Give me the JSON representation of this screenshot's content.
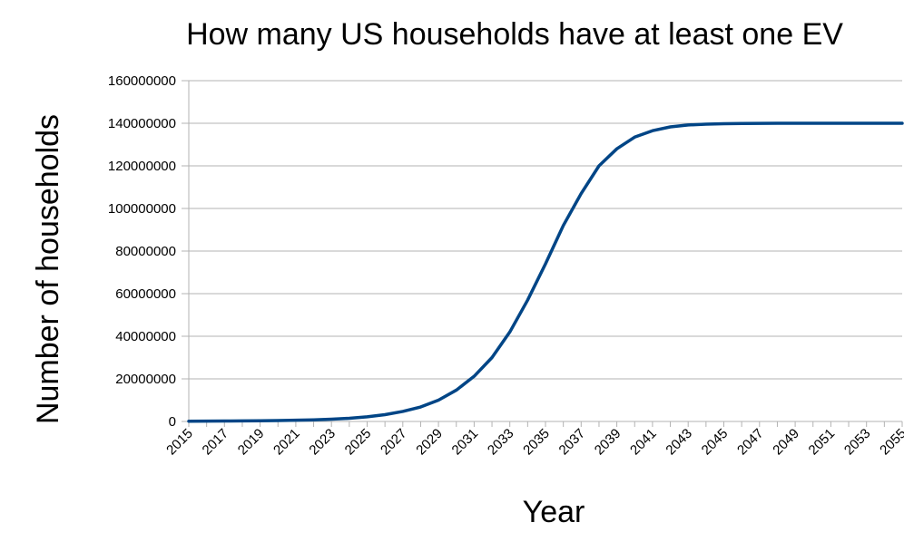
{
  "chart_data": {
    "type": "line",
    "title": "How many US households have at least one EV",
    "xlabel": "Year",
    "ylabel": "Number of households",
    "ylim": [
      0,
      160000000
    ],
    "y_ticks": [
      "0",
      "20000000",
      "40000000",
      "60000000",
      "80000000",
      "100000000",
      "120000000",
      "140000000",
      "160000000"
    ],
    "x": [
      "2015",
      "2016",
      "2017",
      "2018",
      "2019",
      "2020",
      "2021",
      "2022",
      "2023",
      "2024",
      "2025",
      "2026",
      "2027",
      "2028",
      "2029",
      "2030",
      "2031",
      "2032",
      "2033",
      "2034",
      "2035",
      "2036",
      "2037",
      "2038",
      "2039",
      "2040",
      "2041",
      "2042",
      "2043",
      "2044",
      "2045",
      "2046",
      "2047",
      "2048",
      "2049",
      "2050",
      "2051",
      "2052",
      "2053",
      "2054",
      "2055"
    ],
    "x_tick_labels": [
      "2015",
      "2017",
      "2019",
      "2021",
      "2023",
      "2025",
      "2027",
      "2029",
      "2031",
      "2033",
      "2035",
      "2037",
      "2039",
      "2041",
      "2043",
      "2045",
      "2047",
      "2049",
      "2051",
      "2053",
      "2055"
    ],
    "series": [
      {
        "color": "#004586",
        "values": [
          100000,
          150000,
          200000,
          250000,
          320000,
          420000,
          560000,
          750000,
          1050000,
          1500000,
          2200000,
          3200000,
          4700000,
          6800000,
          10000000,
          14700000,
          21200000,
          30000000,
          42000000,
          57000000,
          74000000,
          92000000,
          107000000,
          120000000,
          128000000,
          133500000,
          136500000,
          138300000,
          139200000,
          139600000,
          139800000,
          139900000,
          139950000,
          140000000,
          140000000,
          140000000,
          140000000,
          140000000,
          140000000,
          140000000,
          140000000
        ]
      }
    ],
    "grid": "horizontal",
    "legend": "none"
  }
}
